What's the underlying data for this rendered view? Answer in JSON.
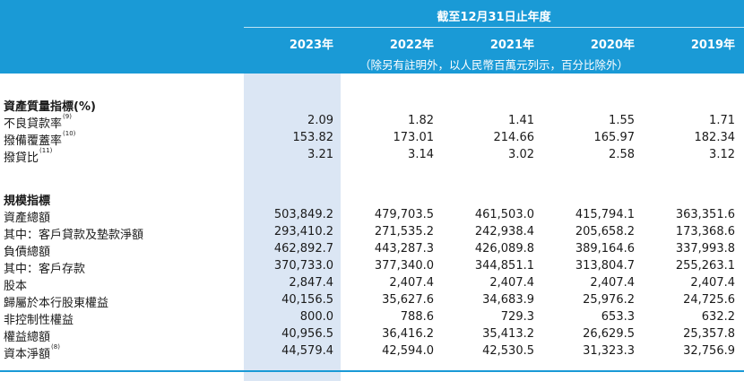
{
  "header": {
    "period": "截至12月31日止年度",
    "years": [
      "2023年",
      "2022年",
      "2021年",
      "2020年",
      "2019年"
    ],
    "note": "（除另有註明外，以人民幣百萬元列示，百分比除外）"
  },
  "sections": {
    "asset_quality": {
      "title": "資產質量指標(%)",
      "rows": [
        {
          "label": "不良貸款率",
          "note": "(9)",
          "values": [
            "2.09",
            "1.82",
            "1.41",
            "1.55",
            "1.71"
          ]
        },
        {
          "label": "撥備覆蓋率",
          "note": "(10)",
          "values": [
            "153.82",
            "173.01",
            "214.66",
            "165.97",
            "182.34"
          ]
        },
        {
          "label": "撥貸比",
          "note": "(11)",
          "values": [
            "3.21",
            "3.14",
            "3.02",
            "2.58",
            "3.12"
          ]
        }
      ]
    },
    "scale": {
      "title": "規模指標",
      "rows": [
        {
          "label": "資產總額",
          "note": "",
          "values": [
            "503,849.2",
            "479,703.5",
            "461,503.0",
            "415,794.1",
            "363,351.6"
          ]
        },
        {
          "label": "其中：客戶貸款及墊款淨額",
          "note": "",
          "values": [
            "293,410.2",
            "271,535.2",
            "242,938.4",
            "205,658.2",
            "173,368.6"
          ]
        },
        {
          "label": "負債總額",
          "note": "",
          "values": [
            "462,892.7",
            "443,287.3",
            "426,089.8",
            "389,164.6",
            "337,993.8"
          ]
        },
        {
          "label": "其中：客戶存款",
          "note": "",
          "values": [
            "370,733.0",
            "377,340.0",
            "344,851.1",
            "313,804.7",
            "255,263.1"
          ]
        },
        {
          "label": "股本",
          "note": "",
          "values": [
            "2,847.4",
            "2,407.4",
            "2,407.4",
            "2,407.4",
            "2,407.4"
          ]
        },
        {
          "label": "歸屬於本行股東權益",
          "note": "",
          "values": [
            "40,156.5",
            "35,627.6",
            "34,683.9",
            "25,976.2",
            "24,725.6"
          ]
        },
        {
          "label": "非控制性權益",
          "note": "",
          "values": [
            "800.0",
            "788.6",
            "729.3",
            "653.3",
            "632.2"
          ]
        },
        {
          "label": "權益總額",
          "note": "",
          "values": [
            "40,956.5",
            "36,416.2",
            "35,413.2",
            "26,629.5",
            "25,357.8"
          ]
        },
        {
          "label": "資本淨額",
          "note": "(8)",
          "values": [
            "44,579.4",
            "42,594.0",
            "42,530.5",
            "31,323.3",
            "32,756.9"
          ]
        }
      ]
    }
  }
}
